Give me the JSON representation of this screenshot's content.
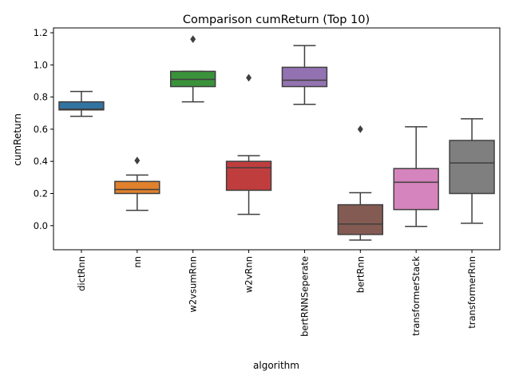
{
  "chart_data": {
    "type": "box",
    "title": "Comparison cumReturn (Top 10)",
    "xlabel": "algorithm",
    "ylabel": "cumReturn",
    "ylim": [
      -0.15,
      1.23
    ],
    "yticks": [
      0.0,
      0.2,
      0.4,
      0.6,
      0.8,
      1.0,
      1.2
    ],
    "ytick_labels": [
      "0.0",
      "0.2",
      "0.4",
      "0.6",
      "0.8",
      "1.0",
      "1.2"
    ],
    "grid": false,
    "categories": [
      "dictRnn",
      "nn",
      "w2vsumRnn",
      "w2vRnn",
      "bertRNNSeperate",
      "bertRnn",
      "transformerStack",
      "transformerRnn"
    ],
    "boxes": [
      {
        "name": "dictRnn",
        "color": "#3274a1",
        "whisker_low": 0.68,
        "q1": 0.72,
        "median": 0.725,
        "q3": 0.77,
        "whisker_high": 0.835,
        "outliers": []
      },
      {
        "name": "nn",
        "color": "#e1812c",
        "whisker_low": 0.095,
        "q1": 0.2,
        "median": 0.225,
        "q3": 0.275,
        "whisker_high": 0.315,
        "outliers": [
          0.405
        ]
      },
      {
        "name": "w2vsumRnn",
        "color": "#3a923a",
        "whisker_low": 0.77,
        "q1": 0.865,
        "median": 0.91,
        "q3": 0.96,
        "whisker_high": 0.96,
        "outliers": [
          1.16
        ]
      },
      {
        "name": "w2vRnn",
        "color": "#c03d3e",
        "whisker_low": 0.07,
        "q1": 0.22,
        "median": 0.36,
        "q3": 0.4,
        "whisker_high": 0.435,
        "outliers": [
          0.92
        ]
      },
      {
        "name": "bertRNNSeperate",
        "color": "#9372b2",
        "whisker_low": 0.755,
        "q1": 0.865,
        "median": 0.905,
        "q3": 0.985,
        "whisker_high": 1.12,
        "outliers": []
      },
      {
        "name": "bertRnn",
        "color": "#845b53",
        "whisker_low": -0.09,
        "q1": -0.055,
        "median": 0.01,
        "q3": 0.13,
        "whisker_high": 0.205,
        "outliers": [
          0.6
        ]
      },
      {
        "name": "transformerStack",
        "color": "#d684bd",
        "whisker_low": -0.005,
        "q1": 0.1,
        "median": 0.27,
        "q3": 0.355,
        "whisker_high": 0.615,
        "outliers": []
      },
      {
        "name": "transformerRnn",
        "color": "#7f7f7f",
        "whisker_low": 0.015,
        "q1": 0.2,
        "median": 0.39,
        "q3": 0.53,
        "whisker_high": 0.665,
        "outliers": []
      }
    ]
  }
}
